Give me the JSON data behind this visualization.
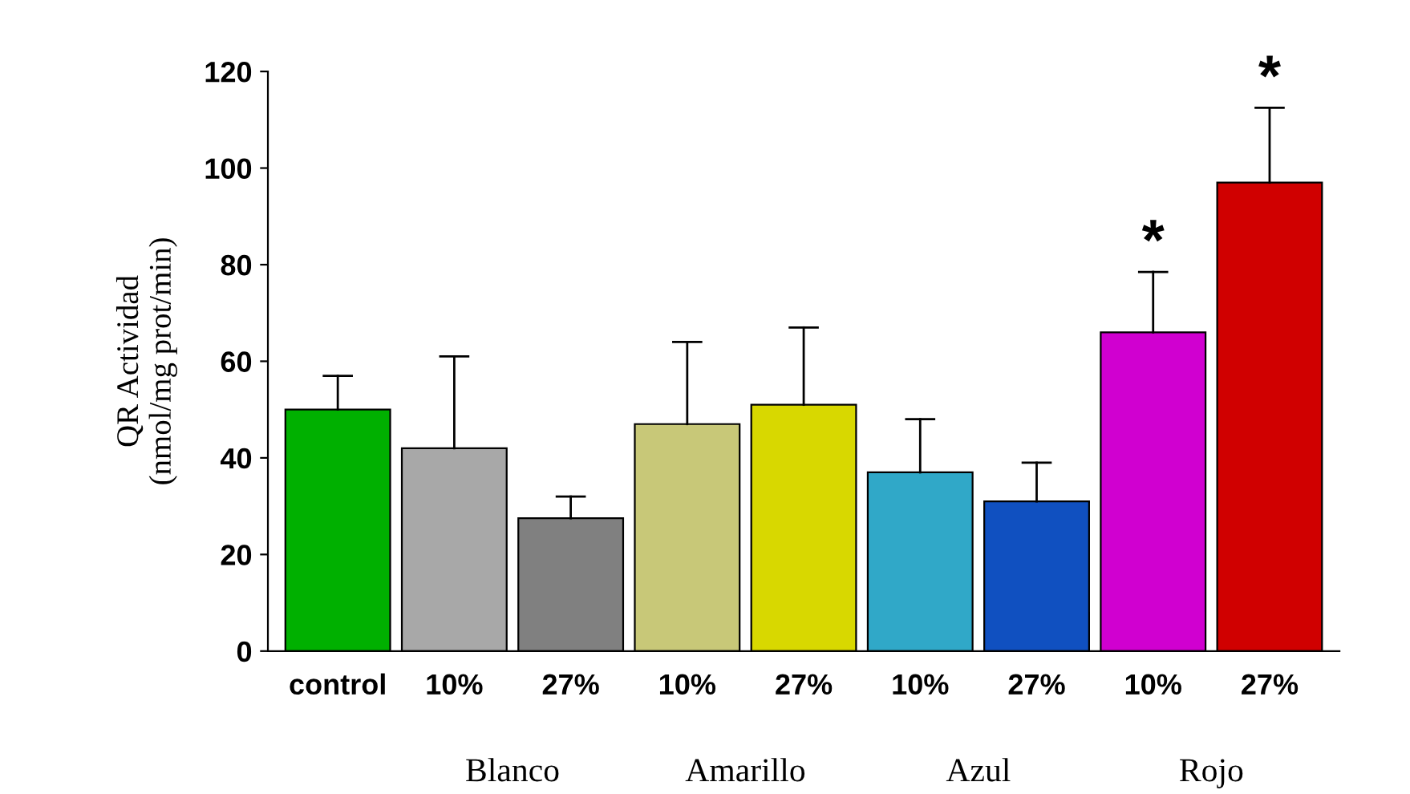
{
  "chart_data": {
    "type": "bar",
    "ylabel": "QR Actividad\n(nmol/mg prot/min)",
    "categories": [
      "control",
      "10%",
      "27%",
      "10%",
      "27%",
      "10%",
      "27%",
      "10%",
      "27%"
    ],
    "values": [
      50,
      42,
      27.5,
      47,
      51,
      37,
      31,
      66,
      97
    ],
    "errors": [
      [
        50,
        57
      ],
      [
        42,
        61
      ],
      [
        27.5,
        32
      ],
      [
        47,
        64
      ],
      [
        51,
        67
      ],
      [
        37,
        48
      ],
      [
        31,
        39
      ],
      [
        66,
        78.5
      ],
      [
        97,
        112.5
      ]
    ],
    "colors": [
      "#00b000",
      "#a8a8a8",
      "#808080",
      "#c8c878",
      "#d8d800",
      "#30a8c8",
      "#1050c0",
      "#d000d0",
      "#d00000"
    ],
    "value_labels": [
      null,
      null,
      null,
      null,
      null,
      null,
      null,
      "*",
      "*"
    ],
    "annotations": [
      "Blanco",
      "Amarillo",
      "Azul",
      "Rojo"
    ],
    "ylim": [
      0,
      120
    ],
    "yticks": [
      0,
      20,
      40,
      60,
      80,
      100,
      120
    ],
    "grid": false,
    "legend": false
  }
}
